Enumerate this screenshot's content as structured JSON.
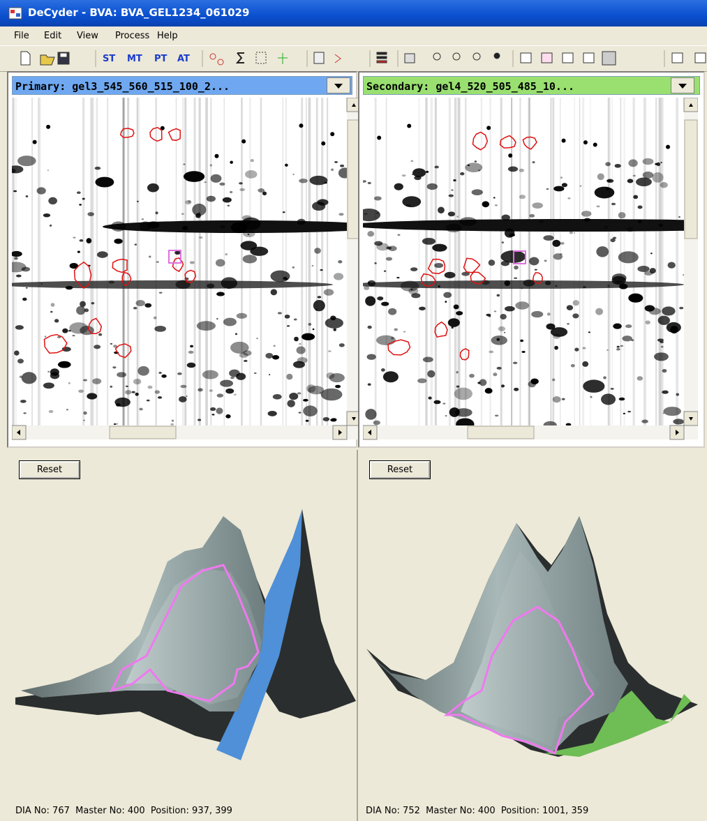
{
  "window": {
    "title": "DeCyder - BVA: BVA_GEL1234_061029"
  },
  "menu": [
    "File",
    "Edit",
    "View",
    "Process",
    "Help"
  ],
  "toolbar": {
    "text_buttons": [
      "ST",
      "MT",
      "PT",
      "AT"
    ]
  },
  "panes": [
    {
      "header": "Primary: gel3_545_560_515_100_2...",
      "reset": "Reset",
      "status": "DIA No: 767  Master No: 400  Position: 937, 399"
    },
    {
      "header": "Secondary: gel4_520_505_485_10...",
      "reset": "Reset",
      "status": "DIA No: 752  Master No: 400  Position: 1001, 359"
    }
  ]
}
